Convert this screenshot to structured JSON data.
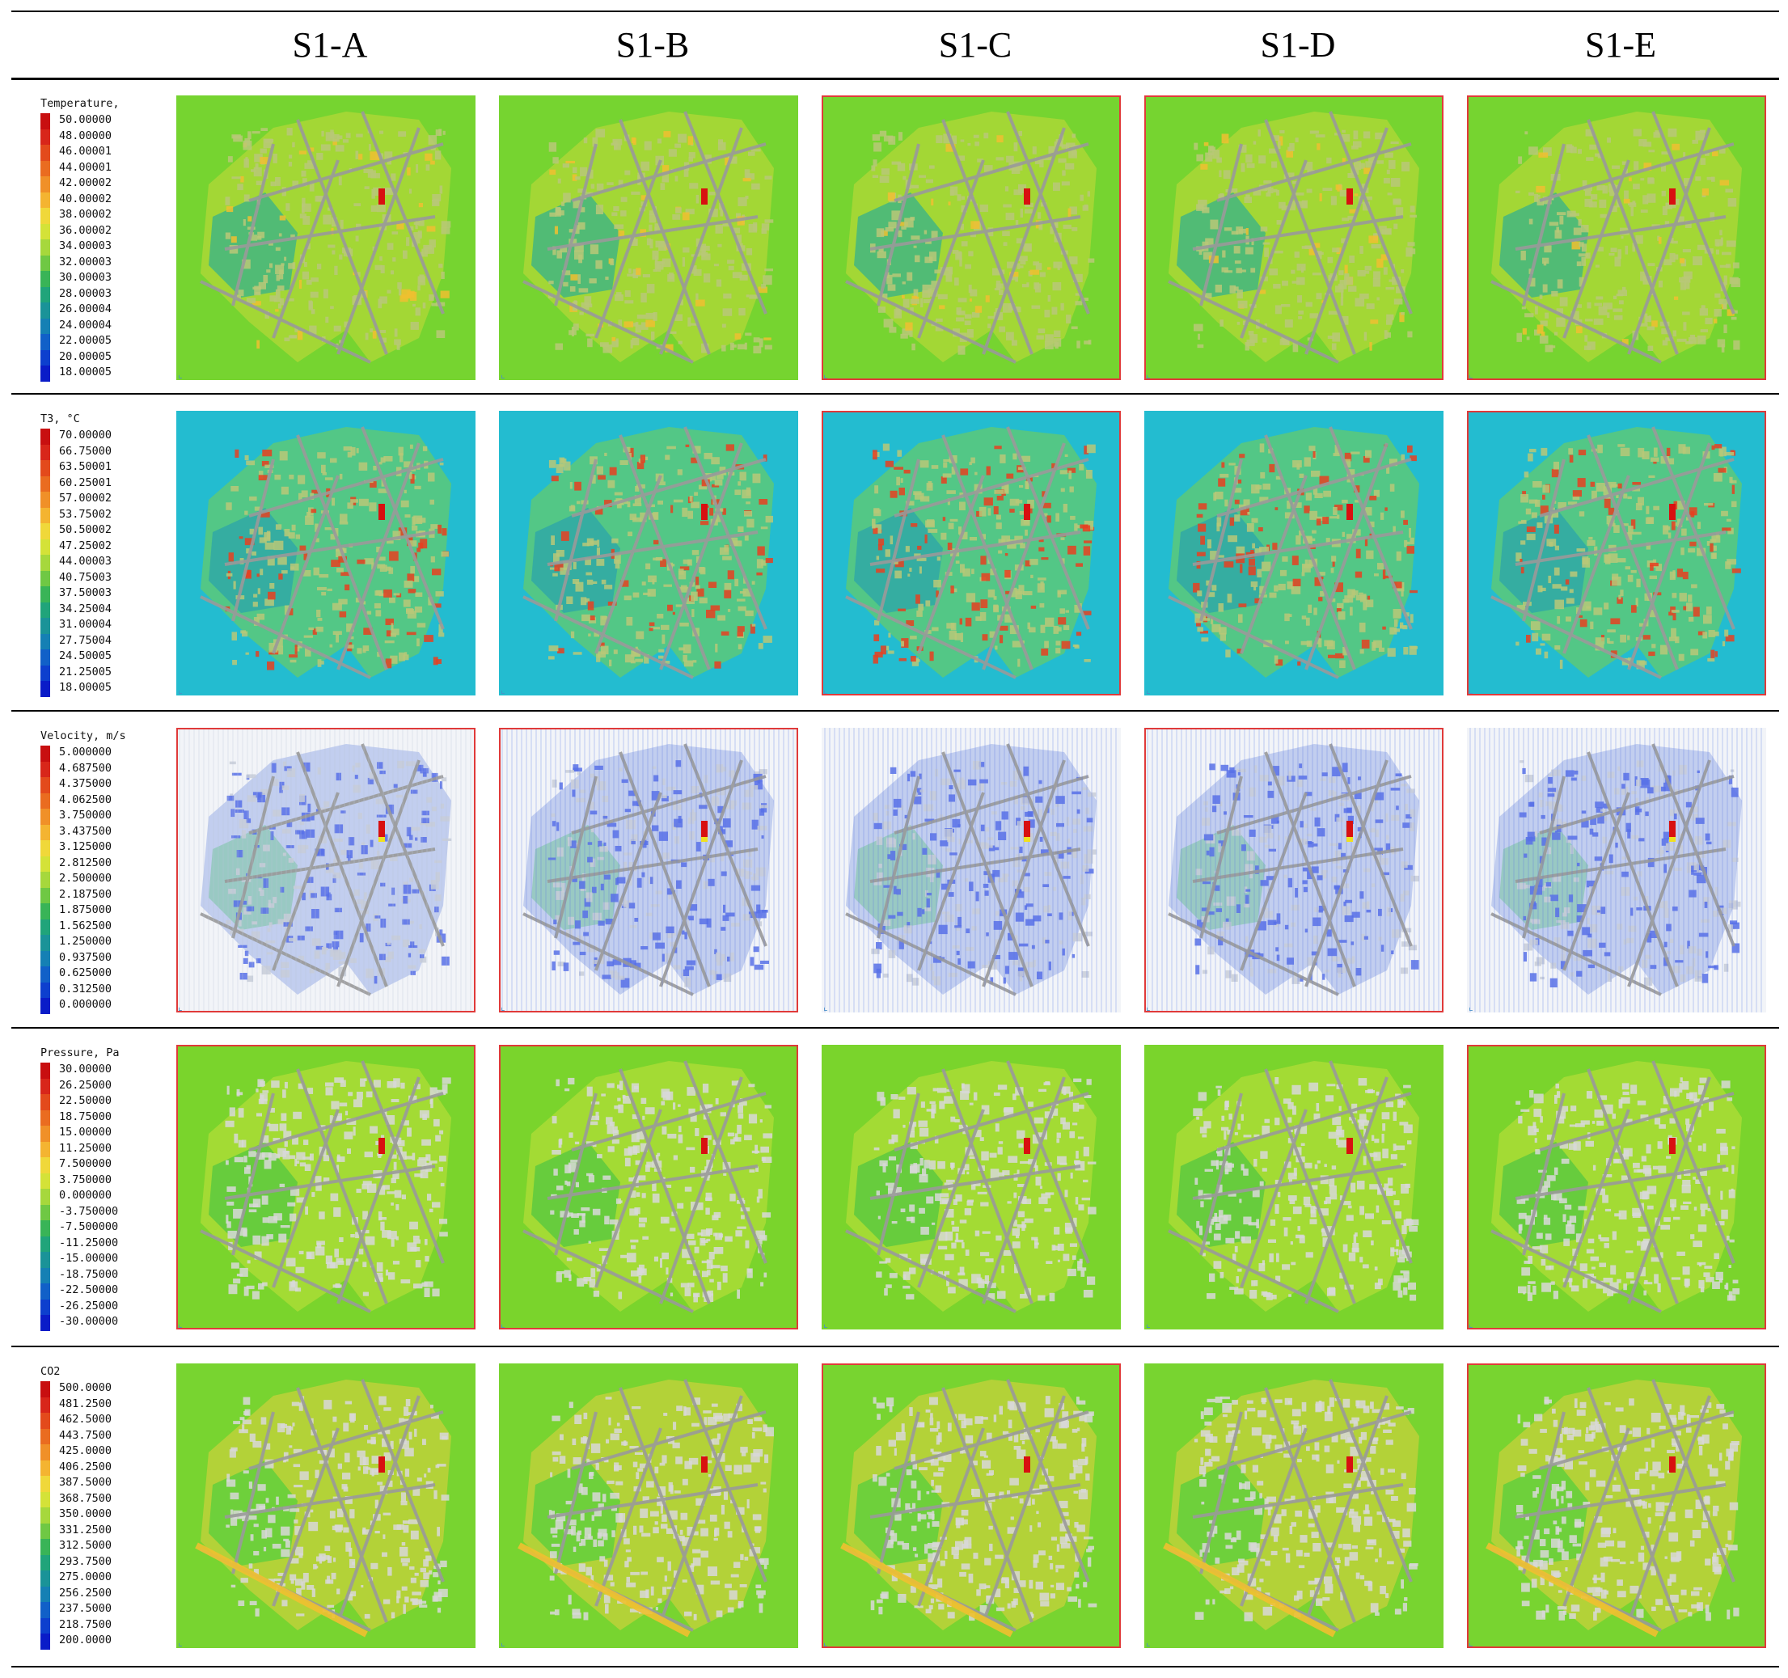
{
  "columns": [
    "S1-A",
    "S1-B",
    "S1-C",
    "S1-D",
    "S1-E"
  ],
  "rows": [
    {
      "id": "temperature",
      "legend_title": "Temperature,",
      "labels": [
        "50.00000",
        "48.00000",
        "46.00001",
        "44.00001",
        "42.00002",
        "40.00002",
        "38.00002",
        "36.00002",
        "34.00003",
        "32.00003",
        "30.00003",
        "28.00003",
        "26.00004",
        "24.00004",
        "22.00005",
        "20.00005",
        "18.00005"
      ],
      "colors": [
        "#c80f10",
        "#d8261a",
        "#e34a1c",
        "#ea6c20",
        "#f09028",
        "#f4b431",
        "#f0d83a",
        "#d4e238",
        "#a6d83c",
        "#6fc844",
        "#39b457",
        "#20a47a",
        "#1a9398",
        "#1580b4",
        "#1160c8",
        "#0d3fce",
        "#0a1cc8"
      ],
      "panel_base": "#76d430",
      "panel_accent": "#c8d83a",
      "panel_water": "#3cb486",
      "panel_hot": "#f0c030",
      "frames": [
        false,
        false,
        true,
        true,
        true
      ]
    },
    {
      "id": "t3",
      "legend_title": "T3, °C",
      "labels": [
        "70.00000",
        "66.75000",
        "63.50001",
        "60.25001",
        "57.00002",
        "53.75002",
        "50.50002",
        "47.25002",
        "44.00003",
        "40.75003",
        "37.50003",
        "34.25004",
        "31.00004",
        "27.75004",
        "24.50005",
        "21.25005",
        "18.00005"
      ],
      "colors": [
        "#c80f10",
        "#d8261a",
        "#e34a1c",
        "#ea6c20",
        "#f09028",
        "#f4b431",
        "#f0d83a",
        "#d4e238",
        "#a6d83c",
        "#6fc844",
        "#39b457",
        "#20a47a",
        "#1a9398",
        "#1580b4",
        "#1160c8",
        "#0d3fce",
        "#0a1cc8"
      ],
      "panel_base": "#23bcd0",
      "panel_accent": "#7ccf48",
      "panel_water": "#2ea6a8",
      "panel_hot": "#e84020",
      "frames": [
        false,
        false,
        true,
        false,
        true
      ]
    },
    {
      "id": "velocity",
      "legend_title": "Velocity, m/s",
      "labels": [
        "5.000000",
        "4.687500",
        "4.375000",
        "4.062500",
        "3.750000",
        "3.437500",
        "3.125000",
        "2.812500",
        "2.500000",
        "2.187500",
        "1.875000",
        "1.562500",
        "1.250000",
        "0.937500",
        "0.625000",
        "0.312500",
        "0.000000"
      ],
      "colors": [
        "#c80f10",
        "#d8261a",
        "#e34a1c",
        "#ea6c20",
        "#f09028",
        "#f4b431",
        "#f0d83a",
        "#d4e238",
        "#a6d83c",
        "#6fc844",
        "#39b457",
        "#20a47a",
        "#1a9398",
        "#1580b4",
        "#1160c8",
        "#0d3fce",
        "#0a1cc8"
      ],
      "panel_base": "#f2f4f8",
      "panel_accent": "#6a86e0",
      "panel_water": "#8fc8b8",
      "panel_hot": "#3350e0",
      "frames": [
        true,
        true,
        false,
        true,
        false
      ]
    },
    {
      "id": "pressure",
      "legend_title": "Pressure, Pa",
      "labels": [
        "30.00000",
        "26.25000",
        "22.50000",
        "18.75000",
        "15.00000",
        "11.25000",
        "7.500000",
        "3.750000",
        "0.000000",
        "-3.750000",
        "-7.500000",
        "-11.25000",
        "-15.00000",
        "-18.75000",
        "-22.50000",
        "-26.25000",
        "-30.00000"
      ],
      "colors": [
        "#c80f10",
        "#d8261a",
        "#e34a1c",
        "#ea6c20",
        "#f09028",
        "#f4b431",
        "#f0d83a",
        "#d4e238",
        "#a6d83c",
        "#6fc844",
        "#39b457",
        "#20a47a",
        "#1a9398",
        "#1580b4",
        "#1160c8",
        "#0d3fce",
        "#0a1cc8"
      ],
      "panel_base": "#7ad42c",
      "panel_accent": "#c4e03c",
      "panel_water": "#58c840",
      "panel_hot": "#e0e040",
      "frames": [
        true,
        true,
        false,
        false,
        true
      ]
    },
    {
      "id": "co2",
      "legend_title": "CO2",
      "labels": [
        "500.0000",
        "481.2500",
        "462.5000",
        "443.7500",
        "425.0000",
        "406.2500",
        "387.5000",
        "368.7500",
        "350.0000",
        "331.2500",
        "312.5000",
        "293.7500",
        "275.0000",
        "256.2500",
        "237.5000",
        "218.7500",
        "200.0000"
      ],
      "colors": [
        "#c80f10",
        "#d8261a",
        "#e34a1c",
        "#ea6c20",
        "#f09028",
        "#f4b431",
        "#f0d83a",
        "#d4e238",
        "#a6d83c",
        "#6fc844",
        "#39b457",
        "#20a47a",
        "#1a9398",
        "#1580b4",
        "#1160c8",
        "#0d3fce",
        "#0a1cc8"
      ],
      "panel_base": "#78d430",
      "panel_accent": "#e4d040",
      "panel_water": "#5ccf3c",
      "panel_hot": "#e89020",
      "frames": [
        false,
        false,
        true,
        false,
        true
      ]
    }
  ]
}
